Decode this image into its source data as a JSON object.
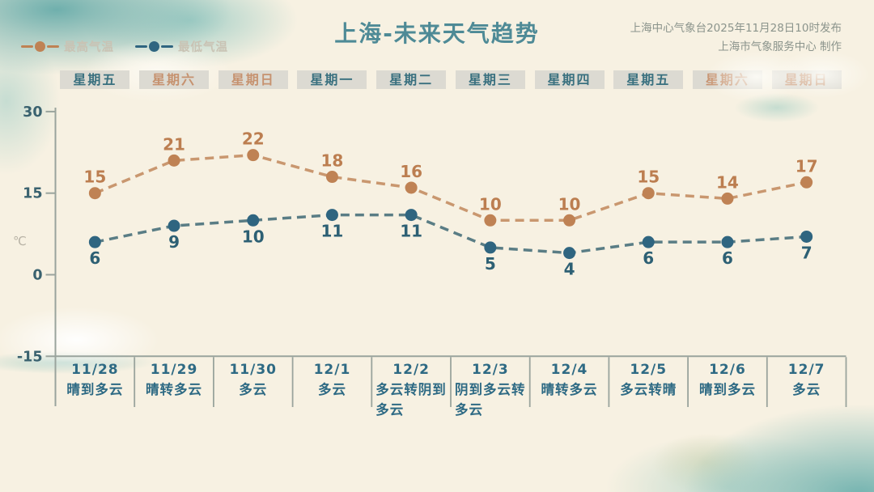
{
  "title": "上海-未来天气趋势",
  "issued": {
    "line1": "上海中心气象台2025年11月28日10时发布",
    "line2": "上海市气象服务中心 制作"
  },
  "legend": {
    "high_label": "最高气温",
    "low_label": "最低气温"
  },
  "unit_label": "℃",
  "colors": {
    "high_dot": "#bf8254",
    "high_line": "#c9976f",
    "high_text": "#bc7e50",
    "low_dot": "#2f6580",
    "low_line": "#5a7d85",
    "low_text": "#2d6074",
    "title": "#4e8a96",
    "weekday_text": "#39707f",
    "weekend_text": "#c6926f",
    "date_text": "#2e6a84",
    "axis_text": "#3a626f",
    "axis_line": "#9aa49d",
    "unit_text": "#b8b3a6",
    "header_bg": "#dcdad2",
    "background": "#f7f1e2"
  },
  "chart_data": {
    "type": "line",
    "title": "上海-未来天气趋势",
    "categories": [
      "11/28",
      "11/29",
      "11/30",
      "12/1",
      "12/2",
      "12/3",
      "12/4",
      "12/5",
      "12/6",
      "12/7"
    ],
    "weekdays": [
      "星期五",
      "星期六",
      "星期日",
      "星期一",
      "星期二",
      "星期三",
      "星期四",
      "星期五",
      "星期六",
      "星期日"
    ],
    "weekend_flags": [
      false,
      true,
      true,
      false,
      false,
      false,
      false,
      false,
      true,
      true
    ],
    "series": [
      {
        "name": "最高气温",
        "values": [
          15,
          21,
          22,
          18,
          16,
          10,
          10,
          15,
          14,
          17
        ]
      },
      {
        "name": "最低气温",
        "values": [
          6,
          9,
          10,
          11,
          11,
          5,
          4,
          6,
          6,
          7
        ]
      }
    ],
    "weather": [
      "晴到多云",
      "晴转多云",
      "多云",
      "多云",
      "多云转阴到多云",
      "阴到多云转多云",
      "晴转多云",
      "多云转晴",
      "晴到多云",
      "多云"
    ],
    "ylabel": "℃",
    "yticks": [
      30,
      15,
      0,
      -15
    ],
    "ylim": [
      -15,
      30
    ],
    "grid": false,
    "line_style": "dashed",
    "legend_position": "top-left"
  }
}
